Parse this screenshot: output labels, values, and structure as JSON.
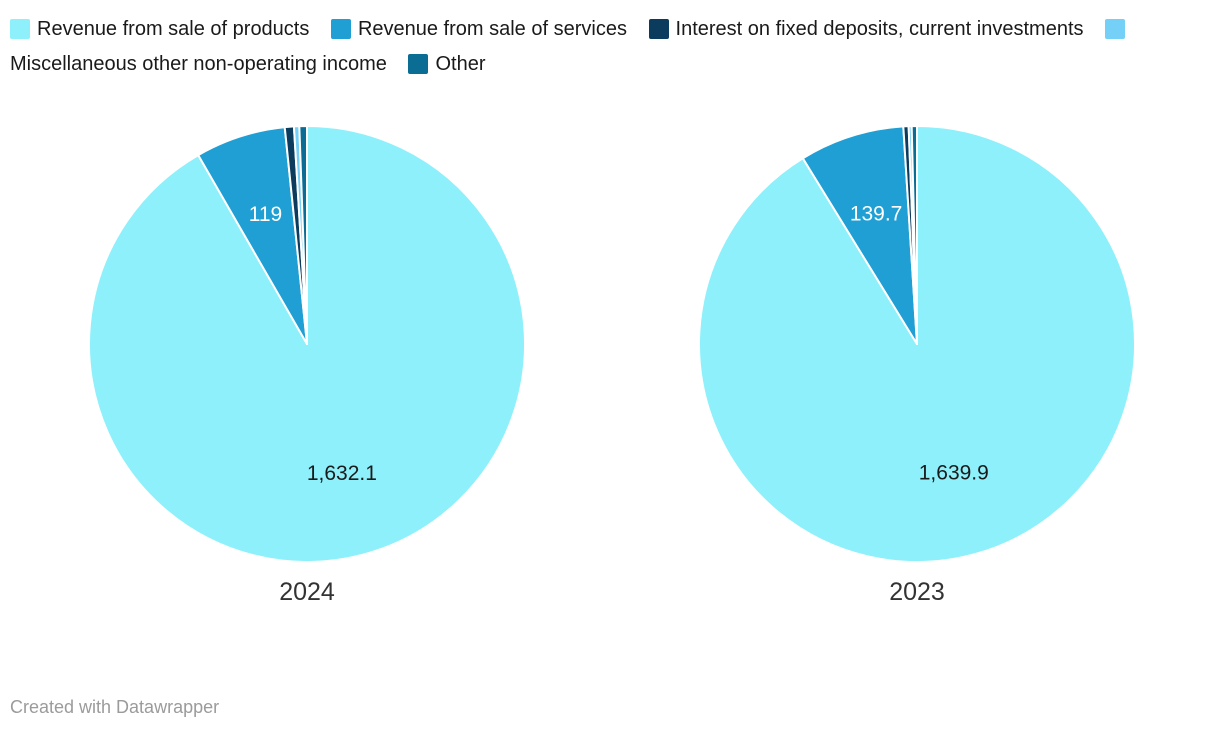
{
  "legend": {
    "items": [
      {
        "label": "Revenue from sale of products",
        "color": "#8df0fa"
      },
      {
        "label": "Revenue from sale of services",
        "color": "#1f9fd4"
      },
      {
        "label": "Interest on fixed deposits, current investments",
        "color": "#0b3c5d"
      },
      {
        "label": "Miscellaneous other non-operating income",
        "color": "#74d0f6"
      },
      {
        "label": "Other",
        "color": "#0c6d94"
      }
    ]
  },
  "footer": {
    "credit": "Created with Datawrapper"
  },
  "chart_data": [
    {
      "type": "pie",
      "title": "2024",
      "labels": [
        "Revenue from sale of products",
        "Revenue from sale of services",
        "Interest on fixed deposits, current investments",
        "Miscellaneous other non-operating income",
        "Other"
      ],
      "values": [
        1632.1,
        119,
        12,
        7,
        10
      ],
      "value_labels": [
        "1,632.1",
        "119",
        null,
        null,
        null
      ],
      "colors": [
        "#8df0fa",
        "#1f9fd4",
        "#0b3c5d",
        "#74d0f6",
        "#0c6d94"
      ],
      "label_text_colors": [
        "#1a1a1a",
        "#ffffff",
        null,
        null,
        null
      ],
      "estimated_unlabeled_values": true,
      "legend_position": "top",
      "start_angle_deg": 0,
      "direction": "clockwise"
    },
    {
      "type": "pie",
      "title": "2023",
      "labels": [
        "Revenue from sale of products",
        "Revenue from sale of services",
        "Interest on fixed deposits, current investments",
        "Miscellaneous other non-operating income",
        "Other"
      ],
      "values": [
        1639.9,
        139.7,
        7,
        4,
        7
      ],
      "value_labels": [
        "1,639.9",
        "139.7",
        null,
        null,
        null
      ],
      "colors": [
        "#8df0fa",
        "#1f9fd4",
        "#0b3c5d",
        "#74d0f6",
        "#0c6d94"
      ],
      "label_text_colors": [
        "#1a1a1a",
        "#ffffff",
        null,
        null,
        null
      ],
      "estimated_unlabeled_values": true,
      "legend_position": "top",
      "start_angle_deg": 0,
      "direction": "clockwise"
    }
  ]
}
